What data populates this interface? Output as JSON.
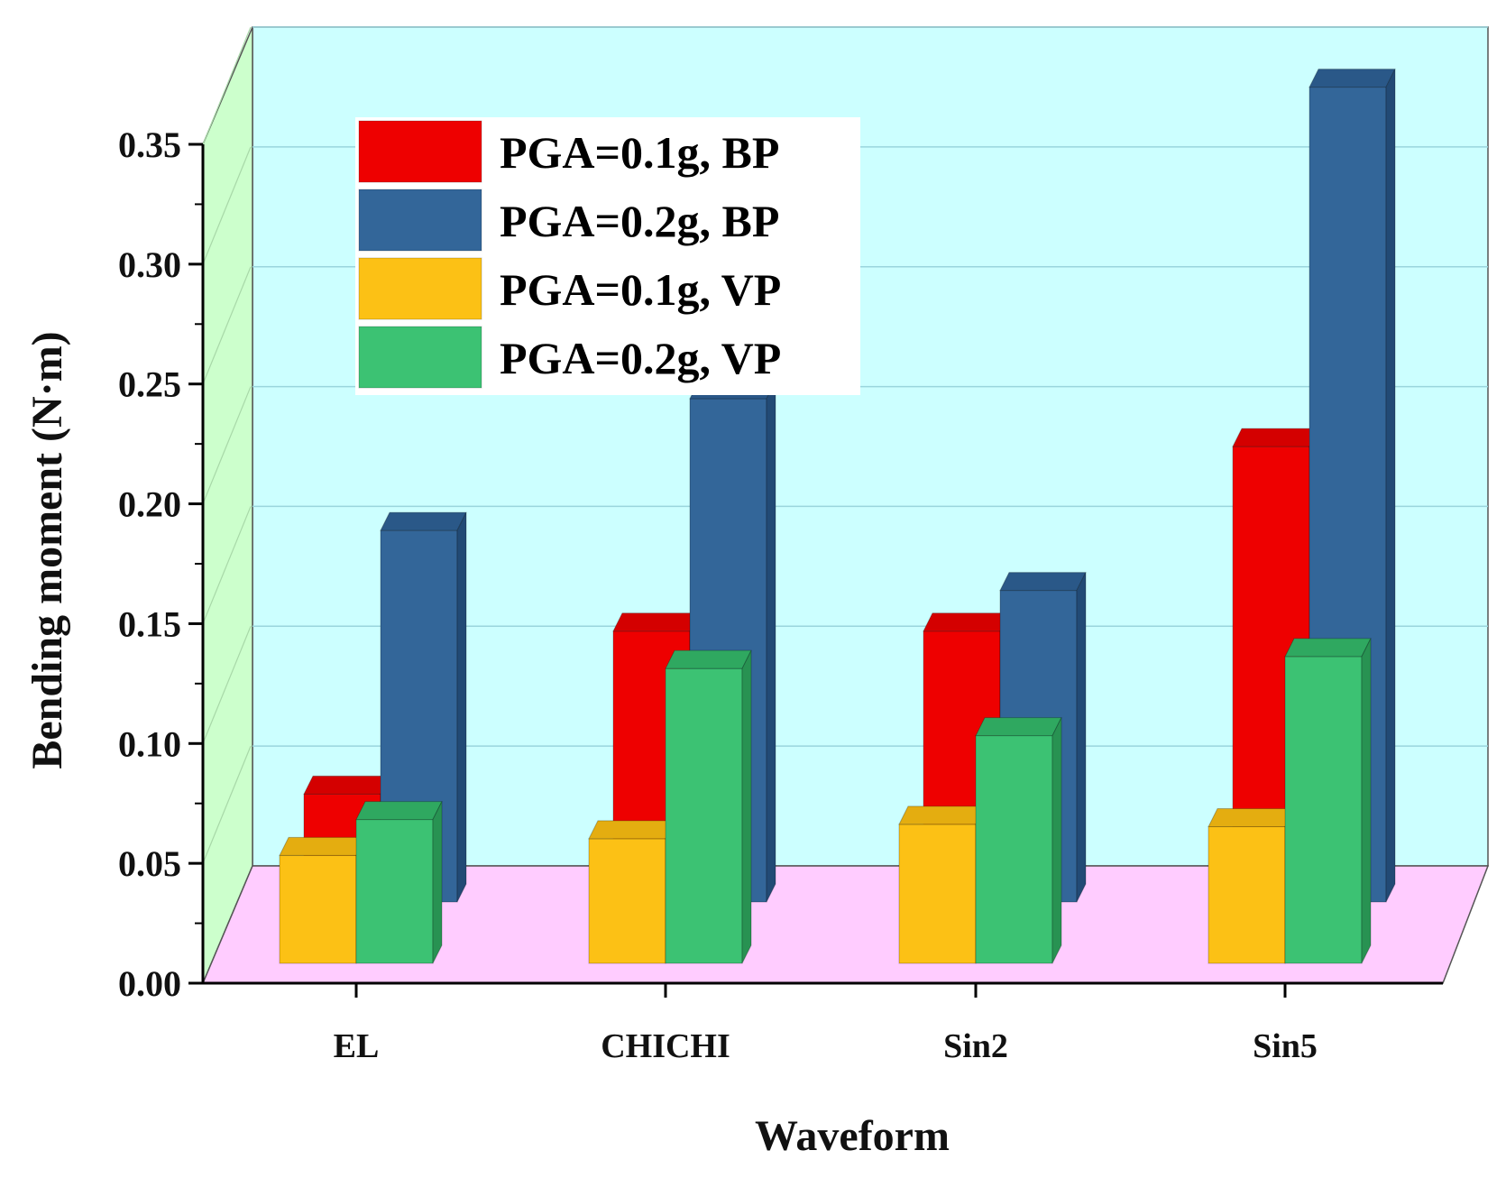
{
  "chart_data": {
    "type": "bar",
    "style": "3d-clustered",
    "title": "",
    "xlabel": "Waveform",
    "ylabel": "Bending moment (N·m)",
    "ylim": [
      0,
      0.35
    ],
    "yticks": [
      "0.00",
      "0.05",
      "0.10",
      "0.15",
      "0.20",
      "0.25",
      "0.30",
      "0.35"
    ],
    "categories": [
      "EL",
      "CHICHI",
      "Sin2",
      "Sin5"
    ],
    "legend_position": "top-left",
    "series": [
      {
        "name": "PGA=0.1g, BP",
        "color": "#ee0000",
        "top": "#d40000",
        "side": "#b80000",
        "values": [
          0.045,
          0.113,
          0.113,
          0.19
        ]
      },
      {
        "name": "PGA=0.2g, BP",
        "color": "#336699",
        "top": "#2a5888",
        "side": "#224a75",
        "values": [
          0.155,
          0.21,
          0.13,
          0.34
        ]
      },
      {
        "name": "PGA=0.1g, VP",
        "color": "#fcc115",
        "top": "#e4ad10",
        "side": "#caa00e",
        "values": [
          0.045,
          0.052,
          0.058,
          0.057
        ]
      },
      {
        "name": "PGA=0.2g, VP",
        "color": "#3cc273",
        "top": "#2fa860",
        "side": "#289252",
        "values": [
          0.06,
          0.123,
          0.095,
          0.128
        ]
      }
    ]
  }
}
